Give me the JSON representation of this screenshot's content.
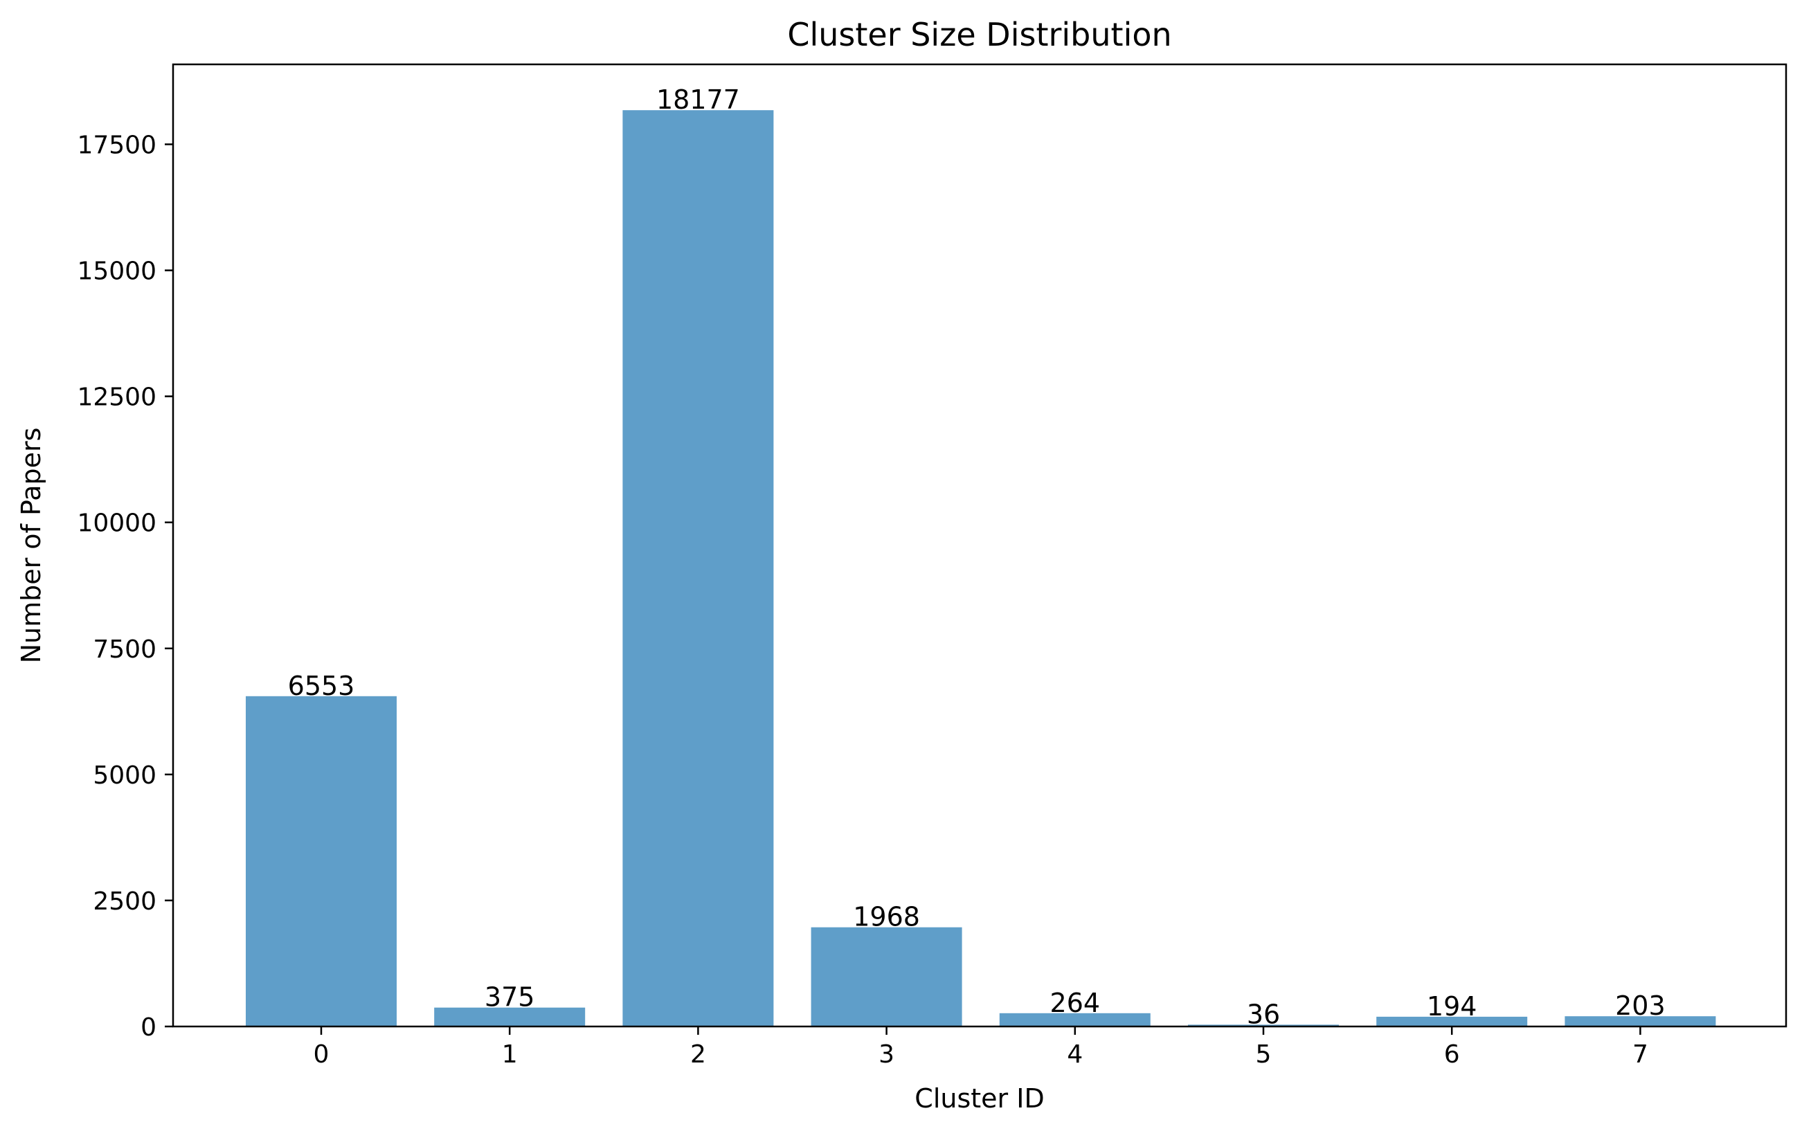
{
  "chart_data": {
    "type": "bar",
    "title": "Cluster Size Distribution",
    "xlabel": "Cluster ID",
    "ylabel": "Number of Papers",
    "categories": [
      "0",
      "1",
      "2",
      "3",
      "4",
      "5",
      "6",
      "7"
    ],
    "values": [
      6553,
      375,
      18177,
      1968,
      264,
      36,
      194,
      203
    ],
    "data_labels": [
      "6553",
      "375",
      "18177",
      "1968",
      "264",
      "36",
      "194",
      "203"
    ],
    "yticks": [
      0,
      2500,
      5000,
      7500,
      10000,
      12500,
      15000,
      17500
    ],
    "ytick_labels": [
      "0",
      "2500",
      "5000",
      "7500",
      "10000",
      "12500",
      "15000",
      "17500"
    ],
    "ylim": [
      0,
      19086
    ],
    "grid": false,
    "bar_color": "#5f9ec9"
  }
}
